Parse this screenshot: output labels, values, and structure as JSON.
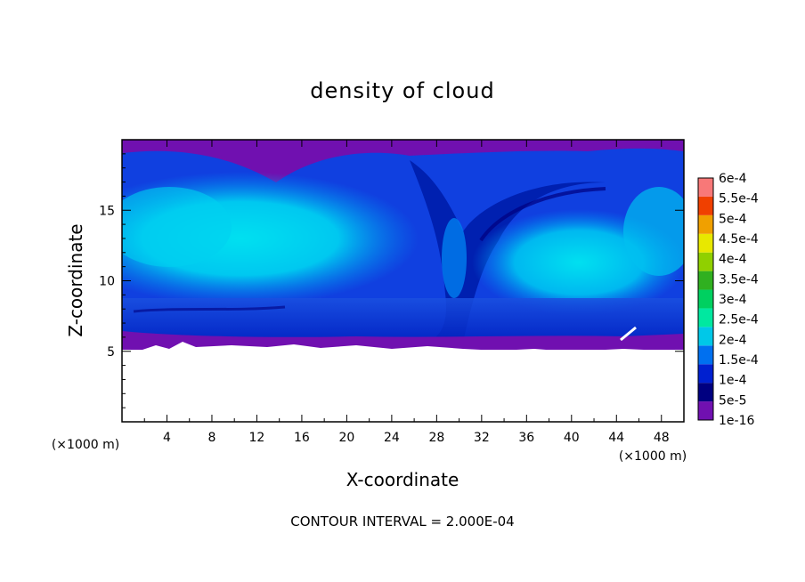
{
  "chart_data": {
    "type": "heatmap",
    "title": "density of cloud",
    "xlabel": "X-coordinate",
    "ylabel": "Z-coordinate",
    "x_unit_left": "(×1000 m)",
    "x_unit_right": "(×1000 m)",
    "x_ticks": [
      4,
      8,
      12,
      16,
      20,
      24,
      28,
      32,
      36,
      40,
      44,
      48
    ],
    "y_ticks": [
      5,
      10,
      15
    ],
    "xlim": [
      0,
      50
    ],
    "ylim": [
      0,
      20
    ],
    "footer": "CONTOUR INTERVAL = 2.000E-04",
    "colorbar": {
      "labels": [
        "1e-16",
        "5e-5",
        "1e-4",
        "1.5e-4",
        "2e-4",
        "2.5e-4",
        "3e-4",
        "3.5e-4",
        "4e-4",
        "4.5e-4",
        "5e-4",
        "5.5e-4",
        "6e-4"
      ],
      "colors": [
        "#7010b0",
        "#000080",
        "#0020d0",
        "#0070f0",
        "#00c8e8",
        "#00e8a0",
        "#00d060",
        "#30b020",
        "#90d000",
        "#e8e800",
        "#f0a000",
        "#f04000",
        "#f87878"
      ]
    },
    "field": {
      "cloud_base_km": 5.0,
      "cloud_top_km": 19.8
    }
  }
}
